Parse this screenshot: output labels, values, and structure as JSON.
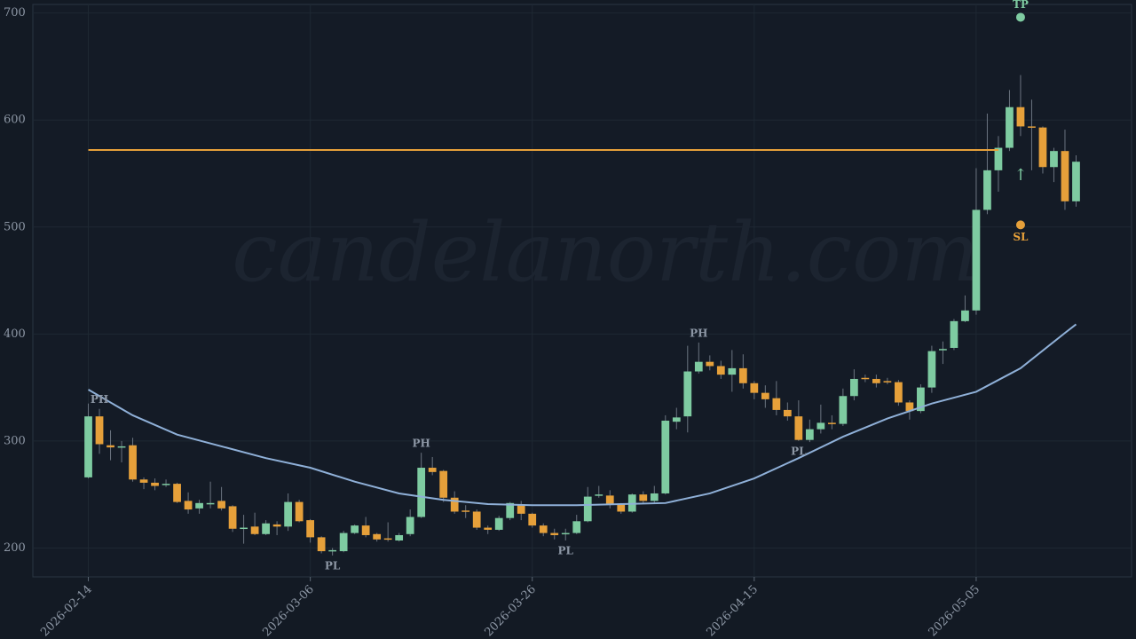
{
  "chart_data": {
    "type": "candlestick",
    "watermark": "candelanorth.com",
    "x": [
      "2026-02-14",
      "2026-02-15",
      "2026-02-16",
      "2026-02-17",
      "2026-02-18",
      "2026-02-19",
      "2026-02-20",
      "2026-02-21",
      "2026-02-22",
      "2026-02-23",
      "2026-02-24",
      "2026-02-25",
      "2026-02-26",
      "2026-02-27",
      "2026-02-28",
      "2026-03-01",
      "2026-03-02",
      "2026-03-03",
      "2026-03-04",
      "2026-03-05",
      "2026-03-06",
      "2026-03-07",
      "2026-03-08",
      "2026-03-09",
      "2026-03-10",
      "2026-03-11",
      "2026-03-12",
      "2026-03-13",
      "2026-03-14",
      "2026-03-15",
      "2026-03-16",
      "2026-03-17",
      "2026-03-18",
      "2026-03-19",
      "2026-03-20",
      "2026-03-21",
      "2026-03-22",
      "2026-03-23",
      "2026-03-24",
      "2026-03-25",
      "2026-03-26",
      "2026-03-27",
      "2026-03-28",
      "2026-03-29",
      "2026-03-30",
      "2026-03-31",
      "2026-04-01",
      "2026-04-02",
      "2026-04-03",
      "2026-04-04",
      "2026-04-05",
      "2026-04-06",
      "2026-04-07",
      "2026-04-08",
      "2026-04-09",
      "2026-04-10",
      "2026-04-11",
      "2026-04-12",
      "2026-04-13",
      "2026-04-14",
      "2026-04-15",
      "2026-04-16",
      "2026-04-17",
      "2026-04-18",
      "2026-04-19",
      "2026-04-20",
      "2026-04-21",
      "2026-04-22",
      "2026-04-23",
      "2026-04-24",
      "2026-04-25",
      "2026-04-26",
      "2026-04-27",
      "2026-04-28",
      "2026-04-29",
      "2026-04-30",
      "2026-05-01",
      "2026-05-02",
      "2026-05-03",
      "2026-05-04",
      "2026-05-05",
      "2026-05-06",
      "2026-05-07",
      "2026-05-08",
      "2026-05-09",
      "2026-05-10",
      "2026-05-11",
      "2026-05-12",
      "2026-05-13",
      "2026-05-14"
    ],
    "open": [
      266,
      323,
      296,
      294,
      296,
      264,
      261,
      259,
      260,
      244,
      237,
      241,
      244,
      239,
      218,
      220,
      213,
      222,
      220,
      243,
      226,
      210,
      197,
      197,
      214,
      221,
      213,
      209,
      207,
      213,
      229,
      275,
      272,
      247,
      235,
      234,
      219,
      217,
      228,
      241,
      232,
      221,
      214,
      213,
      214,
      225,
      249,
      249,
      241,
      234,
      250,
      244,
      251,
      318,
      323,
      365,
      374,
      370,
      362,
      368,
      354,
      345,
      340,
      329,
      323,
      301,
      311,
      317,
      316,
      342,
      359,
      358,
      356,
      355,
      336,
      328,
      350,
      385,
      387,
      412,
      422,
      516,
      553,
      574,
      612,
      594,
      593,
      556,
      571,
      524
    ],
    "high": [
      335,
      330,
      310,
      300,
      303,
      266,
      265,
      264,
      261,
      252,
      245,
      262,
      257,
      240,
      231,
      233,
      226,
      225,
      251,
      245,
      227,
      211,
      200,
      216,
      222,
      229,
      214,
      224,
      214,
      236,
      289,
      285,
      273,
      253,
      240,
      236,
      221,
      230,
      243,
      244,
      233,
      223,
      218,
      218,
      231,
      257,
      258,
      254,
      242,
      251,
      253,
      258,
      324,
      331,
      389,
      392,
      380,
      375,
      385,
      381,
      356,
      352,
      356,
      336,
      338,
      320,
      334,
      324,
      349,
      367,
      362,
      362,
      359,
      357,
      338,
      353,
      389,
      393,
      414,
      436,
      555,
      606,
      585,
      628,
      642,
      619,
      594,
      574,
      591,
      567
    ],
    "low": [
      265,
      288,
      282,
      280,
      262,
      255,
      254,
      257,
      242,
      232,
      232,
      237,
      235,
      215,
      204,
      212,
      212,
      212,
      216,
      224,
      205,
      195,
      193,
      196,
      213,
      210,
      206,
      206,
      206,
      211,
      228,
      268,
      243,
      232,
      228,
      217,
      213,
      216,
      226,
      226,
      219,
      211,
      208,
      207,
      213,
      224,
      247,
      237,
      232,
      233,
      241,
      242,
      250,
      311,
      308,
      363,
      366,
      358,
      346,
      349,
      339,
      331,
      324,
      319,
      300,
      299,
      307,
      311,
      314,
      338,
      355,
      350,
      353,
      333,
      320,
      326,
      345,
      372,
      385,
      411,
      418,
      512,
      533,
      571,
      585,
      553,
      550,
      542,
      516,
      519
    ],
    "close": [
      323,
      297,
      294,
      295,
      264,
      261,
      258,
      260,
      243,
      236,
      242,
      242,
      237,
      218,
      219,
      213,
      223,
      220,
      243,
      225,
      210,
      197,
      198,
      214,
      221,
      212,
      208,
      208,
      212,
      229,
      275,
      271,
      247,
      234,
      234,
      219,
      217,
      228,
      242,
      232,
      221,
      214,
      212,
      214,
      225,
      248,
      250,
      241,
      234,
      250,
      244,
      251,
      319,
      322,
      365,
      374,
      370,
      362,
      368,
      354,
      345,
      339,
      329,
      323,
      301,
      311,
      317,
      316,
      342,
      358,
      358,
      354,
      355,
      336,
      328,
      350,
      384,
      386,
      412,
      422,
      516,
      553,
      574,
      612,
      594,
      593,
      556,
      571,
      524,
      561
    ],
    "up_color": "#7ecba1",
    "down_color": "#e6a03a",
    "ma": {
      "color": "#8fb0d8",
      "x": [
        "2026-02-14",
        "2026-02-18",
        "2026-02-22",
        "2026-02-26",
        "2026-03-02",
        "2026-03-06",
        "2026-03-10",
        "2026-03-14",
        "2026-03-18",
        "2026-03-22",
        "2026-03-26",
        "2026-03-30",
        "2026-04-03",
        "2026-04-07",
        "2026-04-11",
        "2026-04-15",
        "2026-04-19",
        "2026-04-23",
        "2026-04-27",
        "2026-05-01",
        "2026-05-05",
        "2026-05-09",
        "2026-05-13",
        "2026-05-14"
      ],
      "values": [
        348,
        324,
        306,
        295,
        284,
        275,
        262,
        251,
        245,
        241,
        240,
        240,
        241,
        242,
        251,
        265,
        284,
        304,
        321,
        335,
        346,
        368,
        401,
        409
      ]
    },
    "level": {
      "value": 572,
      "x": [
        "2026-02-14",
        "2026-05-07"
      ],
      "color": "#e6a03a"
    },
    "targets": [
      {
        "label": "TP",
        "x": "2026-05-09",
        "value": 696,
        "color": "#7ecba1"
      },
      {
        "label": "SL",
        "x": "2026-05-09",
        "value": 502,
        "color": "#e6a03a"
      }
    ],
    "signal": {
      "label": "↑",
      "x": "2026-05-09",
      "value": 548,
      "color": "#7ecba1"
    },
    "pivots": [
      {
        "label": "PH",
        "x": "2026-02-15"
      },
      {
        "label": "PH",
        "x": "2026-03-16"
      },
      {
        "label": "PH",
        "x": "2026-04-10"
      },
      {
        "label": "PL",
        "x": "2026-03-08"
      },
      {
        "label": "PL",
        "x": "2026-03-29"
      },
      {
        "label": "PL",
        "x": "2026-04-19"
      }
    ],
    "xlim": [
      "2026-02-09",
      "2026-05-19"
    ],
    "xticks": [
      "2026-02-14",
      "2026-03-06",
      "2026-03-26",
      "2026-04-15",
      "2026-05-05"
    ],
    "ylim": [
      173,
      708
    ],
    "yticks": [
      200,
      300,
      400,
      500,
      600,
      700
    ],
    "grid": true
  }
}
